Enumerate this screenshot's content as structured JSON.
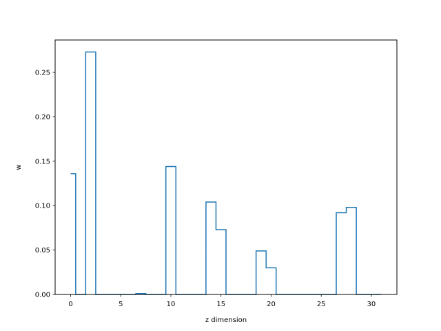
{
  "chart_data": {
    "type": "line",
    "drawstyle": "steps-mid",
    "title": "",
    "xlabel": "z dimension",
    "ylabel": "w",
    "xlim": [
      -1.55,
      32.55
    ],
    "ylim": [
      0.0,
      0.2865
    ],
    "xticks": [
      0,
      5,
      10,
      15,
      20,
      25,
      30
    ],
    "yticks": [
      0.0,
      0.05,
      0.1,
      0.15,
      0.2,
      0.25
    ],
    "ytick_labels": [
      "0.00",
      "0.05",
      "0.10",
      "0.15",
      "0.20",
      "0.25"
    ],
    "grid": false,
    "color": "#1f77b4",
    "series": [
      {
        "x": [
          0,
          1,
          2,
          3,
          4,
          5,
          6,
          7,
          8,
          9,
          10,
          11,
          12,
          13,
          14,
          15,
          16,
          17,
          18,
          19,
          20,
          21,
          22,
          23,
          24,
          25,
          26,
          27,
          28,
          29,
          30,
          31
        ],
        "values": [
          0.136,
          0.0,
          0.273,
          0.0,
          0.0,
          0.0,
          0.0,
          0.001,
          0.0,
          0.0,
          0.144,
          0.0,
          0.0,
          0.0,
          0.104,
          0.073,
          0.0,
          0.0,
          0.0,
          0.049,
          0.03,
          0.0,
          0.0,
          0.0,
          0.0,
          0.0,
          0.0,
          0.092,
          0.098,
          0.0,
          0.0,
          0.0
        ]
      }
    ]
  }
}
